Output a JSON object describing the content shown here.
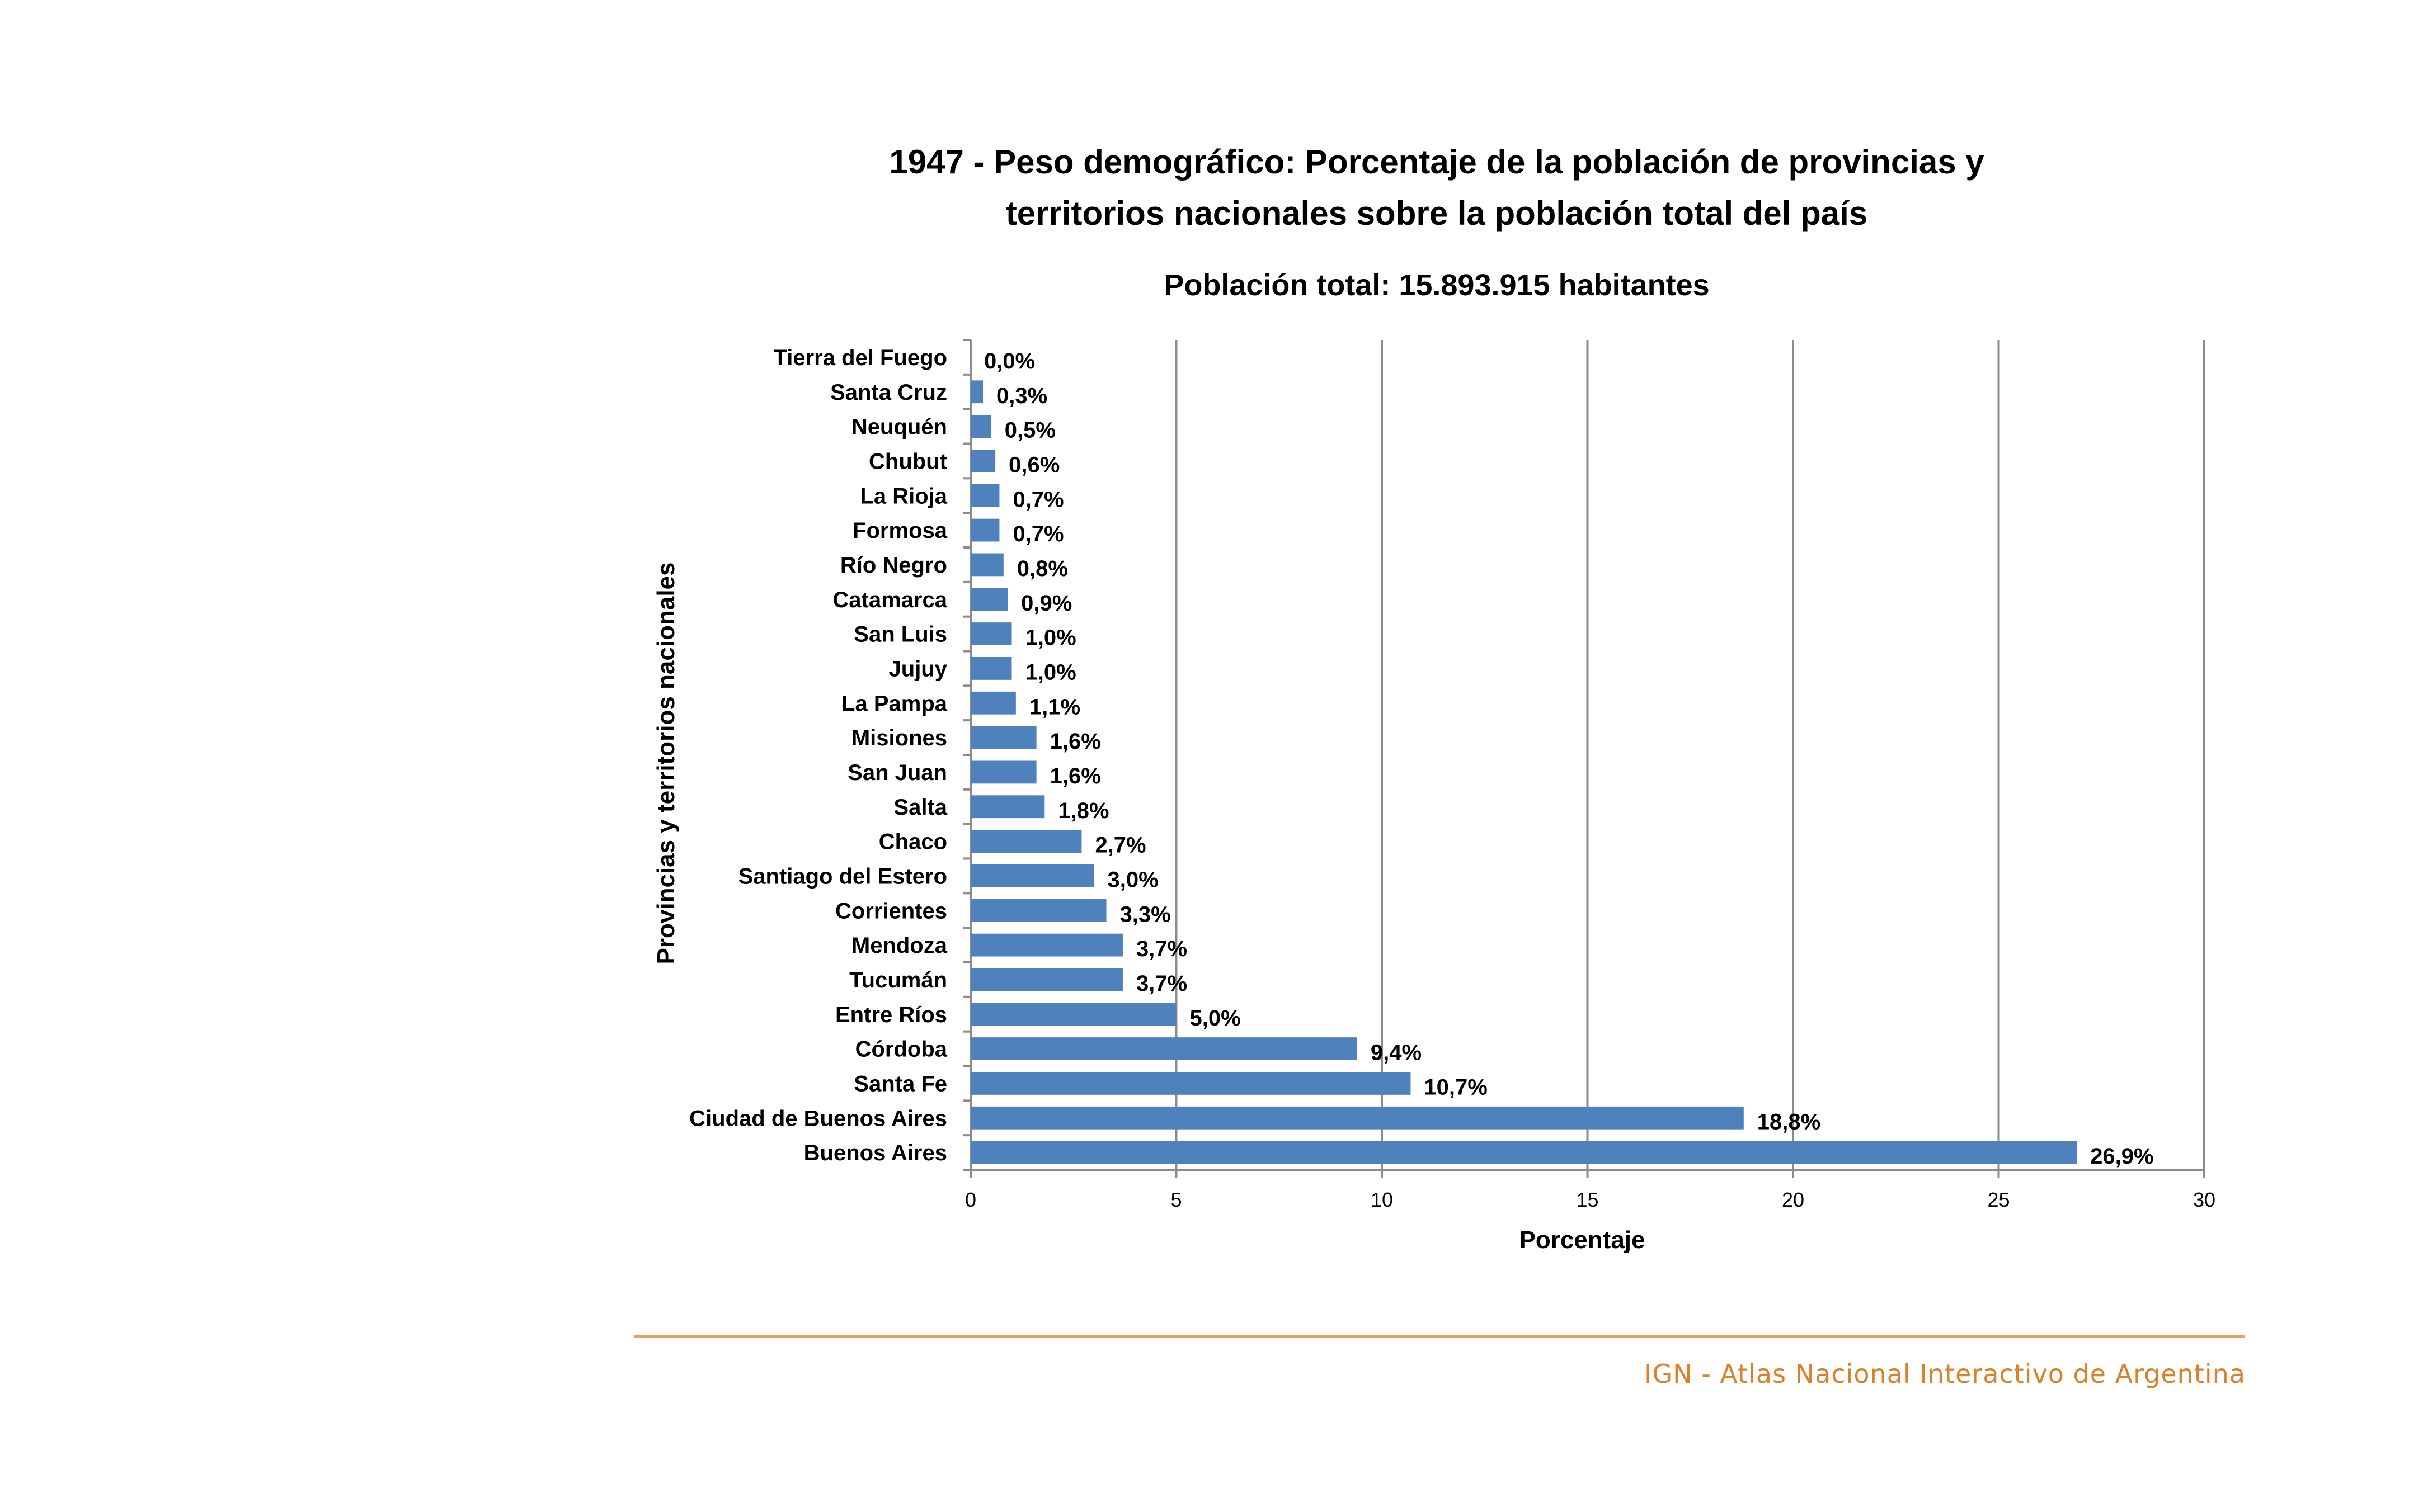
{
  "footer": {
    "credit": "IGN - Atlas Nacional Interactivo de Argentina"
  },
  "colors": {
    "bar": "#4f81bd",
    "grid": "#8c8c8c",
    "footer": "#d9822b",
    "footer_line": "#e5a25a"
  },
  "chart_data": {
    "type": "bar",
    "orientation": "horizontal",
    "title": "1947 - Peso demográfico: Porcentaje de la población de provincias y territorios nacionales sobre la población total del país",
    "title_lines": [
      "1947 - Peso demográfico: Porcentaje de la población de provincias y",
      "territorios nacionales sobre la población total del país"
    ],
    "subtitle": "Población total: 15.893.915 habitantes",
    "xlabel": "Porcentaje",
    "ylabel": "Provincias y territorios nacionales",
    "xlim": [
      0,
      30
    ],
    "xticks": [
      0,
      5,
      10,
      15,
      20,
      25,
      30
    ],
    "grid": true,
    "legend": "none",
    "categories": [
      "Tierra del Fuego",
      "Santa Cruz",
      "Neuquén",
      "Chubut",
      "La Rioja",
      "Formosa",
      "Río Negro",
      "Catamarca",
      "San Luis",
      "Jujuy",
      "La Pampa",
      "Misiones",
      "San Juan",
      "Salta",
      "Chaco",
      "Santiago del Estero",
      "Corrientes",
      "Mendoza",
      "Tucumán",
      "Entre Ríos",
      "Córdoba",
      "Santa Fe",
      "Ciudad de Buenos Aires",
      "Buenos Aires"
    ],
    "values": [
      0.0,
      0.3,
      0.5,
      0.6,
      0.7,
      0.7,
      0.8,
      0.9,
      1.0,
      1.0,
      1.1,
      1.6,
      1.6,
      1.8,
      2.7,
      3.0,
      3.3,
      3.7,
      3.7,
      5.0,
      9.4,
      10.7,
      18.8,
      26.9
    ],
    "data_labels": [
      "0,0%",
      "0,3%",
      "0,5%",
      "0,6%",
      "0,7%",
      "0,7%",
      "0,8%",
      "0,9%",
      "1,0%",
      "1,0%",
      "1,1%",
      "1,6%",
      "1,6%",
      "1,8%",
      "2,7%",
      "3,0%",
      "3,3%",
      "3,7%",
      "3,7%",
      "5,0%",
      "9,4%",
      "10,7%",
      "18,8%",
      "26,9%"
    ]
  }
}
